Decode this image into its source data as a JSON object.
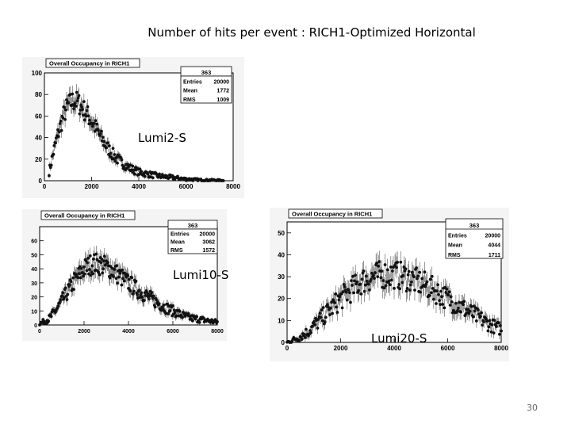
{
  "slide": {
    "title": "Number of hits per event : RICH1-Optimized  Horizontal",
    "page_number": "30"
  },
  "chart_data": [
    {
      "type": "scatter",
      "title": "Overall Occupancy in RICH1",
      "annotation": "Lumi2-S",
      "xlim": [
        0,
        8000
      ],
      "ylim": [
        0,
        100
      ],
      "x_ticks": [
        "0",
        "2000",
        "4000",
        "6000",
        "8000"
      ],
      "y_ticks": [
        "0",
        "20",
        "40",
        "60",
        "80",
        "100"
      ],
      "stats": {
        "name": "363",
        "entries_label": "Entries",
        "entries": "20000",
        "mean_label": "Mean",
        "mean": "1772",
        "rms_label": "RMS",
        "rms": "1009"
      },
      "x": [
        200,
        400,
        600,
        800,
        1000,
        1200,
        1400,
        1600,
        1800,
        2000,
        2200,
        2400,
        2600,
        2800,
        3000,
        3200,
        3400,
        3600,
        3800,
        4000,
        4400,
        4800,
        5200,
        5600,
        6000,
        6400,
        6800,
        7200,
        7600
      ],
      "y": [
        8,
        28,
        45,
        60,
        70,
        74,
        73,
        68,
        62,
        55,
        48,
        40,
        33,
        27,
        22,
        18,
        15,
        12,
        10,
        8,
        6,
        4.5,
        3.5,
        2.5,
        1.5,
        1,
        0.5,
        0.5,
        0
      ]
    },
    {
      "type": "scatter",
      "title": "Overall Occupancy in RICH1",
      "annotation": "Lumi10-S",
      "xlim": [
        0,
        8000
      ],
      "ylim": [
        0,
        70
      ],
      "x_ticks": [
        "0",
        "2000",
        "4000",
        "6000",
        "8000"
      ],
      "y_ticks": [
        "0",
        "10",
        "20",
        "30",
        "40",
        "50",
        "60"
      ],
      "stats": {
        "name": "363",
        "entries_label": "Entries",
        "entries": "20000",
        "mean_label": "Mean",
        "mean": "3062",
        "rms_label": "RMS",
        "rms": "1572"
      },
      "x": [
        0,
        400,
        800,
        1200,
        1600,
        2000,
        2400,
        2800,
        3200,
        3600,
        4000,
        4400,
        4800,
        5200,
        5600,
        6000,
        6400,
        6800,
        7200,
        7600,
        8000
      ],
      "y": [
        1,
        4,
        12,
        22,
        32,
        40,
        44,
        43,
        40,
        35,
        30,
        25,
        21,
        17,
        13,
        10,
        7,
        5,
        4,
        3,
        2
      ]
    },
    {
      "type": "scatter",
      "title": "Overall Occupancy in RICH1",
      "annotation": "Lumi20-S",
      "xlim": [
        0,
        8000
      ],
      "ylim": [
        0,
        55
      ],
      "x_ticks": [
        "0",
        "2000",
        "4000",
        "6000",
        "8000"
      ],
      "y_ticks": [
        "0",
        "10",
        "20",
        "30",
        "40",
        "50"
      ],
      "stats": {
        "name": "363",
        "entries_label": "Entries",
        "entries": "20000",
        "mean_label": "Mean",
        "mean": "4044",
        "rms_label": "RMS",
        "rms": "1711"
      },
      "x": [
        0,
        400,
        800,
        1200,
        1600,
        2000,
        2400,
        2800,
        3200,
        3600,
        4000,
        4400,
        4800,
        5200,
        5600,
        6000,
        6400,
        6800,
        7200,
        7600,
        8000
      ],
      "y": [
        0,
        2,
        5,
        10,
        15,
        20,
        24,
        28,
        30,
        31,
        31,
        30,
        28,
        26,
        23,
        20,
        17,
        14,
        11,
        8,
        6
      ]
    }
  ]
}
